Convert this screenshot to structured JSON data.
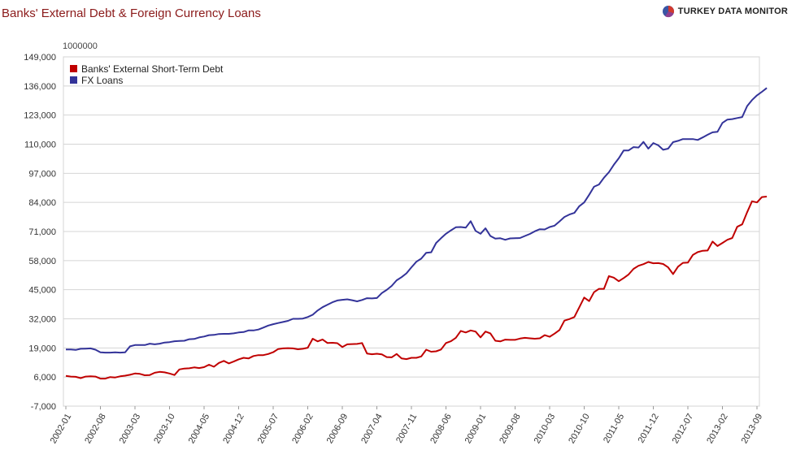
{
  "header": {
    "title": "Banks' External Debt & Foreign Currency Loans",
    "brand": "TURKEY DATA MONITOR",
    "brand_icon": "pie-logo-icon"
  },
  "colors": {
    "series1": "#c00000",
    "series2": "#333399",
    "grid": "#d4d4d4",
    "title": "#8b1a1a"
  },
  "chart_data": {
    "type": "line",
    "unit_label": "1000000",
    "y_ticks": [
      "149,000",
      "136,000",
      "123,000",
      "110,000",
      "97,000",
      "84,000",
      "71,000",
      "58,000",
      "45,000",
      "32,000",
      "19,000",
      "6,000",
      "-7,000"
    ],
    "ylim": [
      -7000,
      149000
    ],
    "x_ticks": [
      "2002-01",
      "2002-08",
      "2003-03",
      "2003-10",
      "2004-05",
      "2004-12",
      "2005-07",
      "2006-02",
      "2006-09",
      "2007-04",
      "2007-11",
      "2008-06",
      "2009-01",
      "2009-08",
      "2010-03",
      "2010-10",
      "2011-05",
      "2011-12",
      "2012-07",
      "2013-02",
      "2013-09"
    ],
    "x_start": "2002-01",
    "grid": true,
    "legend_position": "top-left",
    "series": [
      {
        "name": "Banks' External Short-Term Debt",
        "color": "#c00000",
        "values": [
          6500,
          6200,
          6100,
          5500,
          6200,
          6300,
          6200,
          5300,
          5300,
          6000,
          5800,
          6300,
          6600,
          7000,
          7600,
          7400,
          6800,
          6900,
          7900,
          8300,
          8100,
          7600,
          6900,
          9400,
          9800,
          9900,
          10300,
          10000,
          10400,
          11500,
          10600,
          12300,
          13200,
          12100,
          12900,
          13900,
          14600,
          14300,
          15400,
          15800,
          15800,
          16300,
          17100,
          18500,
          18800,
          18900,
          18800,
          18400,
          18600,
          19100,
          23100,
          21900,
          22800,
          21200,
          21300,
          21100,
          19400,
          20600,
          20700,
          20800,
          21200,
          16500,
          16200,
          16400,
          16100,
          14900,
          14800,
          16300,
          14300,
          14000,
          14600,
          14600,
          15200,
          18200,
          17300,
          17500,
          18300,
          21200,
          22000,
          23500,
          26600,
          25900,
          26800,
          26300,
          23700,
          26300,
          25500,
          22200,
          21900,
          22700,
          22600,
          22600,
          23200,
          23500,
          23300,
          23100,
          23300,
          24700,
          24000,
          25400,
          27000,
          31200,
          31900,
          32800,
          37100,
          41500,
          39900,
          43900,
          45400,
          45400,
          51100,
          50400,
          48800,
          50200,
          51800,
          54300,
          55700,
          56400,
          57400,
          56800,
          56900,
          56500,
          55000,
          52000,
          55300,
          57000,
          57100,
          60500,
          61800,
          62400,
          62500,
          66500,
          64500,
          65900,
          67300,
          68100,
          73100,
          74200,
          79600,
          84500,
          84000,
          86400,
          86600
        ],
        "note": "values are monthly from 2002-01, in the chart's units (read from axis)"
      },
      {
        "name": "FX Loans",
        "color": "#333399",
        "values": [
          18300,
          18300,
          18100,
          18600,
          18700,
          18800,
          18200,
          17000,
          16900,
          16900,
          17000,
          16900,
          17000,
          19700,
          20300,
          20300,
          20300,
          20900,
          20600,
          20900,
          21400,
          21600,
          22000,
          22100,
          22200,
          22900,
          23000,
          23700,
          24100,
          24700,
          24800,
          25200,
          25300,
          25300,
          25500,
          25900,
          26100,
          26800,
          26800,
          27200,
          28100,
          29000,
          29600,
          30100,
          30600,
          31100,
          32000,
          32000,
          32100,
          32800,
          33800,
          35700,
          37200,
          38300,
          39400,
          40200,
          40500,
          40700,
          40300,
          39800,
          40400,
          41200,
          41100,
          41300,
          43500,
          44900,
          46700,
          49200,
          50600,
          52300,
          55000,
          57500,
          58900,
          61500,
          61700,
          65900,
          68000,
          70000,
          71500,
          72900,
          73000,
          72700,
          75600,
          71300,
          70000,
          72400,
          69000,
          67800,
          68000,
          67300,
          67900,
          68000,
          68100,
          69000,
          69900,
          71100,
          72000,
          71900,
          73000,
          73600,
          75500,
          77500,
          78600,
          79300,
          82300,
          84000,
          87400,
          91000,
          92000,
          95000,
          97500,
          100800,
          103700,
          107200,
          107200,
          108700,
          108500,
          111000,
          108000,
          110500,
          109500,
          107500,
          108000,
          110900,
          111500,
          112300,
          112300,
          112300,
          111900,
          113000,
          114200,
          115300,
          115500,
          119500,
          121000,
          121200,
          121700,
          122100,
          127000,
          129700,
          131800,
          133400,
          135100
        ]
      }
    ]
  }
}
